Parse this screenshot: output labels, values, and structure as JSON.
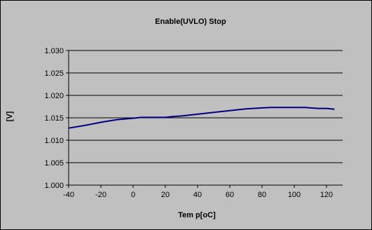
{
  "chart_data": {
    "type": "line",
    "title": "Enable(UVLO) Stop",
    "xlabel": "Tem p[oC]",
    "ylabel": "[V]",
    "xlim": [
      -40,
      130
    ],
    "ylim": [
      1.0,
      1.03
    ],
    "x_ticks": [
      "-40",
      "-20",
      "0",
      "20",
      "40",
      "60",
      "80",
      "100",
      "120"
    ],
    "y_ticks": [
      "1.000",
      "1.005",
      "1.010",
      "1.015",
      "1.020",
      "1.025",
      "1.030"
    ],
    "grid": "horizontal",
    "legend": "none",
    "colors": {
      "plot_background": "#c0c0c0",
      "outer_background": "#ffffff",
      "line": "#000080",
      "gridline": "#000000"
    },
    "series": [
      {
        "x": [
          -40,
          -30,
          -20,
          -10,
          0,
          5,
          10,
          20,
          25,
          30,
          40,
          50,
          60,
          70,
          80,
          85,
          90,
          100,
          107,
          110,
          115,
          120,
          125
        ],
        "values": [
          1.0127,
          1.0133,
          1.014,
          1.0146,
          1.0149,
          1.0151,
          1.0151,
          1.0151,
          1.0153,
          1.0154,
          1.0158,
          1.0162,
          1.0166,
          1.017,
          1.0172,
          1.0173,
          1.0173,
          1.0173,
          1.0173,
          1.0172,
          1.0171,
          1.0171,
          1.0169
        ]
      }
    ]
  }
}
